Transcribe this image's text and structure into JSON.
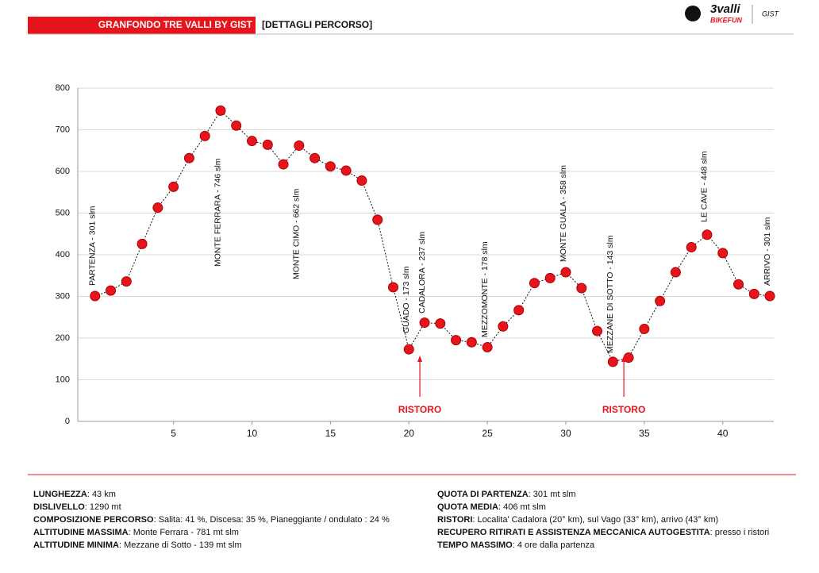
{
  "header": {
    "title": "GRANFONDO TRE VALLI BY GIST",
    "subtitle": "[DETTAGLI PERCORSO]",
    "logo": [
      "3valli",
      "BIKEFUN",
      "GIST"
    ]
  },
  "chart_data": {
    "type": "line",
    "x": [
      0,
      1,
      2,
      3,
      4,
      5,
      6,
      7,
      8,
      9,
      10,
      11,
      12,
      13,
      14,
      15,
      16,
      17,
      18,
      19,
      20,
      21,
      22,
      23,
      24,
      25,
      26,
      27,
      28,
      29,
      30,
      31,
      32,
      33,
      34,
      35,
      36,
      37,
      38,
      39,
      40,
      41,
      42,
      43
    ],
    "values": [
      301,
      314,
      336,
      426,
      513,
      563,
      632,
      685,
      746,
      710,
      673,
      664,
      617,
      662,
      632,
      612,
      602,
      578,
      484,
      322,
      173,
      237,
      235,
      195,
      190,
      178,
      228,
      267,
      332,
      344,
      358,
      320,
      217,
      143,
      153,
      222,
      289,
      358,
      418,
      448,
      404,
      329,
      306,
      301
    ],
    "color": "#e8141c",
    "xlim": [
      -1.1,
      43.25
    ],
    "xticks": [
      5,
      10,
      15,
      20,
      25,
      30,
      35,
      40
    ],
    "ylim": [
      0,
      800
    ],
    "yticks": [
      0,
      100,
      200,
      300,
      400,
      500,
      600,
      700,
      800
    ],
    "grid": true,
    "annotations": [
      {
        "index": 0,
        "text": "PARTENZA - 301 slm"
      },
      {
        "index": 8,
        "text": "MONTE FERRARA - 746 slm"
      },
      {
        "index": 13,
        "text": "MONTE CIMO - 662 slm"
      },
      {
        "index": 20,
        "text": "GUADO - 173 slm"
      },
      {
        "index": 21,
        "text": "CADALORA - 237 slm"
      },
      {
        "index": 25,
        "text": "MEZZOMONTE - 178 slm"
      },
      {
        "index": 30,
        "text": "MONTE GUALA - 358 slm"
      },
      {
        "index": 33,
        "text": "MEZZANE DI SOTTO - 143 slm"
      },
      {
        "index": 39,
        "text": "LE CAVE - 448 slm"
      },
      {
        "index": 43,
        "text": "ARRIVO - 301 slm"
      }
    ],
    "stops": [
      {
        "index": 21,
        "text": "RISTORO"
      },
      {
        "index": 34,
        "text": "RISTORO"
      }
    ]
  },
  "info": {
    "left": [
      {
        "label": "LUNGHEZZA",
        "text": ": 43 km"
      },
      {
        "label": "DISLIVELLO",
        "text": ": 1290 mt"
      },
      {
        "label": "COMPOSIZIONE PERCORSO",
        "text": ": Salita: 41 %, Discesa: 35 %,  Pianeggiante / ondulato : 24 %"
      },
      {
        "label": "ALTITUDINE MASSIMA",
        "text": ": Monte Ferrara - 781 mt slm"
      },
      {
        "label": "ALTITUDINE MINIMA",
        "text": ": Mezzane di Sotto - 139 mt slm"
      }
    ],
    "right": [
      {
        "label": "QUOTA DI PARTENZA",
        "text": ": 301 mt slm"
      },
      {
        "label": "QUOTA MEDIA",
        "text": ": 406 mt slm"
      },
      {
        "label": "RISTORI",
        "text": ": Localita' Cadalora (20° km), sul Vago (33° km), arrivo (43° km)"
      },
      {
        "label": "RECUPERO RITIRATI E ASSISTENZA MECCANICA AUTOGESTITA",
        "text": ": presso i ristori"
      },
      {
        "label": "TEMPO MASSIMO",
        "text": ": 4 ore dalla partenza"
      }
    ]
  }
}
